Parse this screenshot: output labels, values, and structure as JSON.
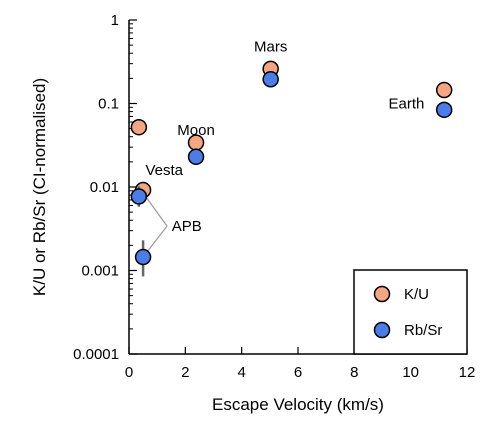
{
  "chart_data": {
    "type": "scatter",
    "xlabel": "Escape Velocity (km/s)",
    "ylabel": "K/U or Rb/Sr (CI-normalised)",
    "xlim": [
      0,
      12
    ],
    "ylim": [
      0.0001,
      1
    ],
    "yscale": "log",
    "x_ticks": [
      0,
      2,
      4,
      6,
      8,
      10,
      12
    ],
    "y_ticks": [
      {
        "value": 1,
        "label": "1"
      },
      {
        "value": 0.1,
        "label": "0.1"
      },
      {
        "value": 0.01,
        "label": "0.01"
      },
      {
        "value": 0.001,
        "label": "0.001"
      },
      {
        "value": 0.0001,
        "label": "0.0001"
      }
    ],
    "series": [
      {
        "name": "K/U",
        "color": "#f4a582",
        "points": [
          {
            "x": 0.35,
            "y": 0.052
          },
          {
            "x": 0.5,
            "y": 0.0092
          },
          {
            "x": 2.38,
            "y": 0.034
          },
          {
            "x": 5.03,
            "y": 0.26
          },
          {
            "x": 11.19,
            "y": 0.145
          }
        ]
      },
      {
        "name": "Rb/Sr",
        "color": "#4a7de8",
        "points": [
          {
            "x": 0.35,
            "y": 0.0077,
            "err_low": 0.0058,
            "err_high": 0.0102
          },
          {
            "x": 0.5,
            "y": 0.00145,
            "err_low": 0.00085,
            "err_high": 0.0023
          },
          {
            "x": 2.38,
            "y": 0.023
          },
          {
            "x": 5.03,
            "y": 0.195
          },
          {
            "x": 11.19,
            "y": 0.084
          }
        ]
      }
    ],
    "annotations": [
      {
        "text": "Mars",
        "x": 5.03,
        "y": 0.48
      },
      {
        "text": "Earth",
        "x": 9.85,
        "y": 0.1
      },
      {
        "text": "Moon",
        "x": 2.38,
        "y": 0.048
      },
      {
        "text": "Vesta",
        "x": 1.25,
        "y": 0.016
      },
      {
        "text": "APB",
        "x": 2.05,
        "y": 0.0034
      }
    ],
    "apb_connectors": [
      {
        "from": {
          "x": 1.35,
          "y": 0.0034
        },
        "to": {
          "x": 0.5,
          "y": 0.0085
        }
      },
      {
        "from": {
          "x": 1.35,
          "y": 0.0034
        },
        "to": {
          "x": 0.5,
          "y": 0.00145
        }
      }
    ],
    "legend": {
      "position": "bottom-right",
      "entries": [
        {
          "label": "K/U",
          "color": "#f4a582"
        },
        {
          "label": "Rb/Sr",
          "color": "#4a7de8"
        }
      ]
    },
    "grid": false
  }
}
